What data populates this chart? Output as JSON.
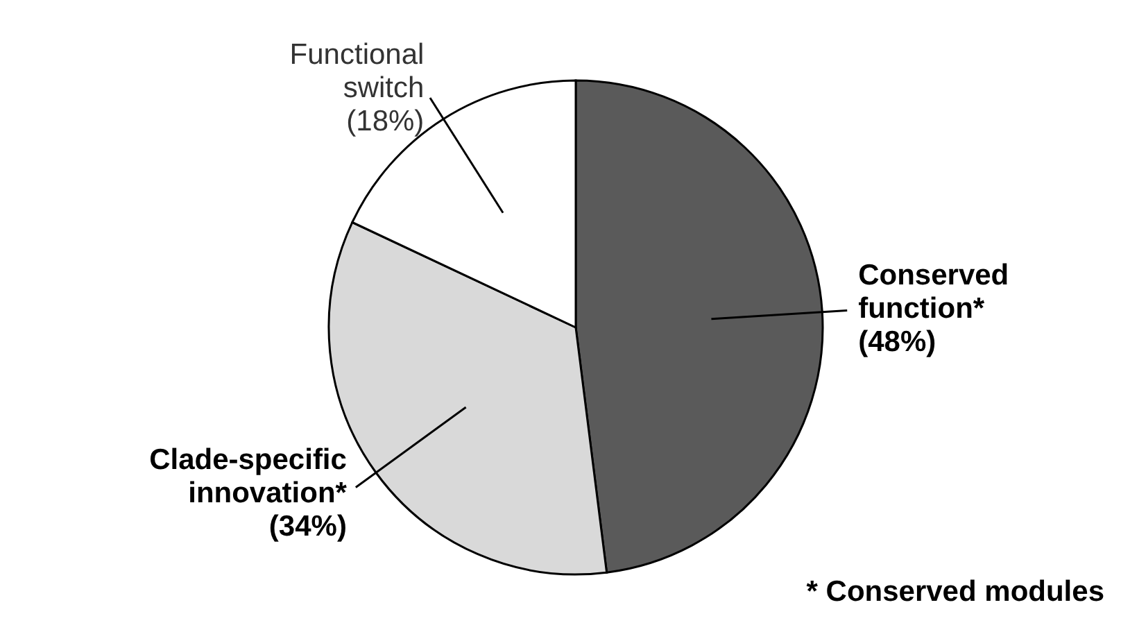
{
  "chart_data": {
    "type": "pie",
    "categories": [
      "Conserved function*",
      "Clade-specific innovation*",
      "Functional switch"
    ],
    "values": [
      48,
      34,
      18
    ],
    "colors": [
      "#5a5a5a",
      "#d9d9d9",
      "#ffffff"
    ],
    "value_labels": [
      "(48%)",
      "(34%)",
      "(18%)"
    ],
    "annotations": [
      "* Conserved modules"
    ],
    "legend": false
  }
}
